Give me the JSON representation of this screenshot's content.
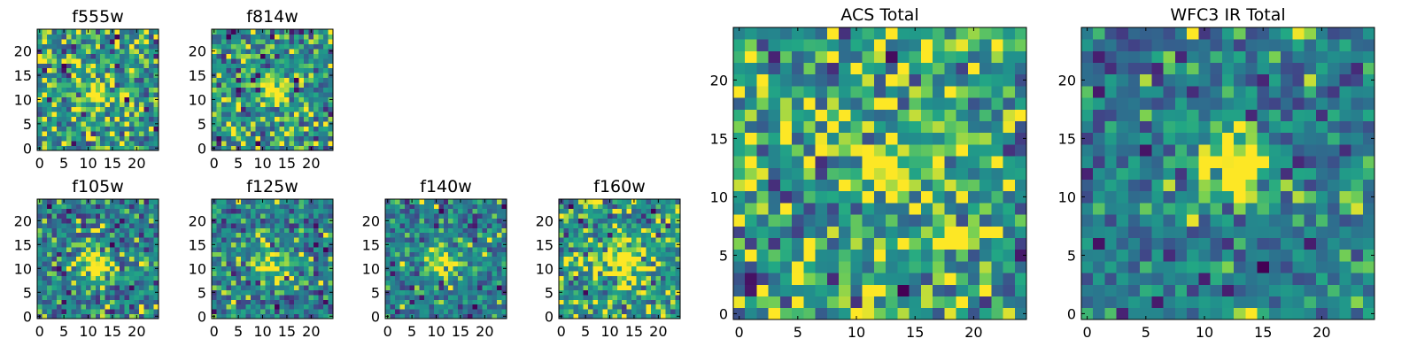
{
  "chart_data": [
    {
      "type": "heatmap",
      "title": "f555w",
      "grid_size": 25,
      "xlim": [
        -0.5,
        24.5
      ],
      "ylim": [
        -0.5,
        24.5
      ],
      "xticks": [
        0,
        5,
        10,
        15,
        20
      ],
      "yticks": [
        0,
        5,
        10,
        15,
        20
      ],
      "colormap": "viridis",
      "source_center": [
        11.5,
        11.5
      ],
      "source_sigma": 2.0,
      "noise_level": 0.75,
      "seed": 11
    },
    {
      "type": "heatmap",
      "title": "f814w",
      "grid_size": 25,
      "xlim": [
        -0.5,
        24.5
      ],
      "ylim": [
        -0.5,
        24.5
      ],
      "xticks": [
        0,
        5,
        10,
        15,
        20
      ],
      "yticks": [
        0,
        5,
        10,
        15,
        20
      ],
      "colormap": "viridis",
      "source_center": [
        12.5,
        12
      ],
      "source_sigma": 2.0,
      "noise_level": 0.75,
      "seed": 23
    },
    {
      "type": "heatmap",
      "title": "f105w",
      "grid_size": 25,
      "xlim": [
        -0.5,
        24.5
      ],
      "ylim": [
        -0.5,
        24.5
      ],
      "xticks": [
        0,
        5,
        10,
        15,
        20
      ],
      "yticks": [
        0,
        5,
        10,
        15,
        20
      ],
      "colormap": "viridis",
      "source_center": [
        11.5,
        10.5
      ],
      "source_sigma": 2.6,
      "noise_level": 0.7,
      "seed": 37
    },
    {
      "type": "heatmap",
      "title": "f125w",
      "grid_size": 25,
      "xlim": [
        -0.5,
        24.5
      ],
      "ylim": [
        -0.5,
        24.5
      ],
      "xticks": [
        0,
        5,
        10,
        15,
        20
      ],
      "yticks": [
        0,
        5,
        10,
        15,
        20
      ],
      "colormap": "viridis",
      "source_center": [
        12.5,
        11
      ],
      "source_sigma": 2.6,
      "noise_level": 0.7,
      "seed": 41
    },
    {
      "type": "heatmap",
      "title": "f140w",
      "grid_size": 25,
      "xlim": [
        -0.5,
        24.5
      ],
      "ylim": [
        -0.5,
        24.5
      ],
      "xticks": [
        0,
        5,
        10,
        15,
        20
      ],
      "yticks": [
        0,
        5,
        10,
        15,
        20
      ],
      "colormap": "viridis",
      "source_center": [
        11.5,
        11.5
      ],
      "source_sigma": 2.6,
      "noise_level": 0.7,
      "seed": 53
    },
    {
      "type": "heatmap",
      "title": "f160w",
      "grid_size": 25,
      "xlim": [
        -0.5,
        24.5
      ],
      "ylim": [
        -0.5,
        24.5
      ],
      "xticks": [
        0,
        5,
        10,
        15,
        20
      ],
      "yticks": [
        0,
        5,
        10,
        15,
        20
      ],
      "colormap": "viridis",
      "source_center": [
        13,
        11.5
      ],
      "source_sigma": 2.6,
      "noise_level": 0.7,
      "seed": 67
    },
    {
      "type": "heatmap",
      "title": "ACS Total",
      "grid_size": 25,
      "xlim": [
        -0.5,
        24.5
      ],
      "ylim": [
        -0.5,
        24.5
      ],
      "xticks": [
        0,
        5,
        10,
        15,
        20
      ],
      "yticks": [
        0,
        5,
        10,
        15,
        20
      ],
      "colormap": "viridis",
      "source_center": [
        12.5,
        12.5
      ],
      "source_sigma": 1.6,
      "noise_level": 0.6,
      "seed": 79
    },
    {
      "type": "heatmap",
      "title": "WFC3 IR Total",
      "grid_size": 25,
      "xlim": [
        -0.5,
        24.5
      ],
      "ylim": [
        -0.5,
        24.5
      ],
      "xticks": [
        0,
        5,
        10,
        15,
        20
      ],
      "yticks": [
        0,
        5,
        10,
        15,
        20
      ],
      "colormap": "viridis",
      "source_center": [
        12.5,
        12.5
      ],
      "source_sigma": 2.5,
      "noise_level": 0.55,
      "seed": 97
    }
  ]
}
